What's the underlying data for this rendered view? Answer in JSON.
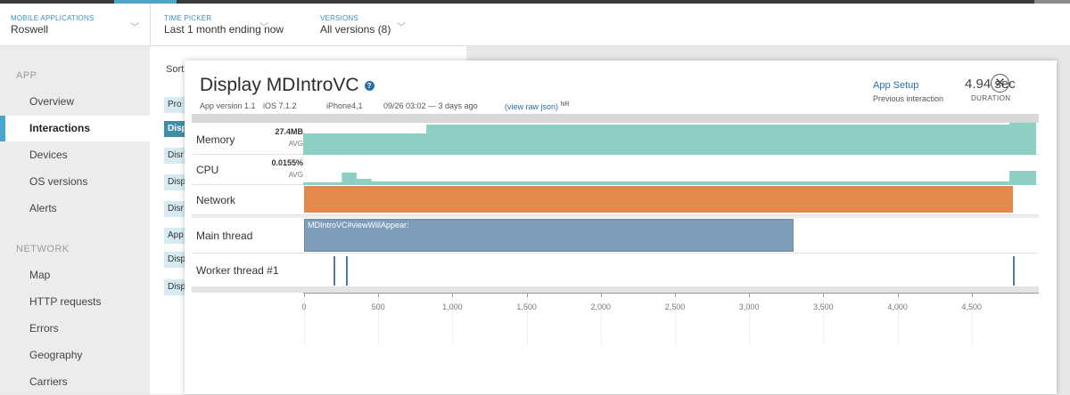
{
  "header": {
    "app_label": "MOBILE APPLICATIONS",
    "app_value": "Roswell",
    "time_label": "TIME PICKER",
    "time_value": "Last 1 month ending now",
    "versions_label": "VERSIONS",
    "versions_value": "All versions (8)"
  },
  "sidebar": {
    "app_section": "APP",
    "app_items": [
      {
        "label": "Overview",
        "active": false
      },
      {
        "label": "Interactions",
        "active": true
      },
      {
        "label": "Devices",
        "active": false
      },
      {
        "label": "OS versions",
        "active": false
      },
      {
        "label": "Alerts",
        "active": false
      }
    ],
    "network_section": "NETWORK",
    "network_items": [
      {
        "label": "Map"
      },
      {
        "label": "HTTP requests"
      },
      {
        "label": "Errors"
      },
      {
        "label": "Geography"
      },
      {
        "label": "Carriers"
      }
    ]
  },
  "background": {
    "sort_label": "Sort",
    "rows": [
      "Pro",
      "Disp",
      "Disr",
      "Disp",
      "Disr",
      "App",
      "Disp",
      "Disp"
    ]
  },
  "modal": {
    "title": "Display MDIntroVC",
    "help_icon": "?",
    "app_version": "App version 1.1",
    "ios": "iOS 7.1.2",
    "device": "iPhone4,1",
    "date": "09/26 03:02 — 3 days ago",
    "raw_json": "(view raw json)",
    "nr": "NR",
    "app_setup": "App Setup",
    "previous_interaction": "Previous interaction",
    "duration": "4.94 sec",
    "duration_label": "DURATION",
    "close_icon": "✕"
  },
  "timeline": {
    "rows": {
      "memory": {
        "label": "Memory",
        "value": "27.4MB",
        "avg": "AVG"
      },
      "cpu": {
        "label": "CPU",
        "value": "0.0155%",
        "avg": "AVG"
      },
      "network": {
        "label": "Network"
      },
      "main_thread": {
        "label": "Main thread",
        "segment_label": "MDIntroVC#viewWillAppear:",
        "segment_end_ms": 3300
      },
      "worker_thread": {
        "label": "Worker thread #1",
        "marks_ms": [
          200,
          280,
          4780
        ]
      }
    },
    "x_ticks": [
      "0",
      "500",
      "1,000",
      "1,500",
      "2,000",
      "2,500",
      "3,000",
      "3,500",
      "4,000",
      "4,500"
    ],
    "x_max_ms": 4940,
    "network_end_ms": 4780,
    "colors": {
      "memory": "#8ecfc4",
      "cpu": "#8ecfc4",
      "network": "#e58a4d",
      "main_thread": "#7e9db8",
      "worker": "#4d7a9a"
    }
  }
}
